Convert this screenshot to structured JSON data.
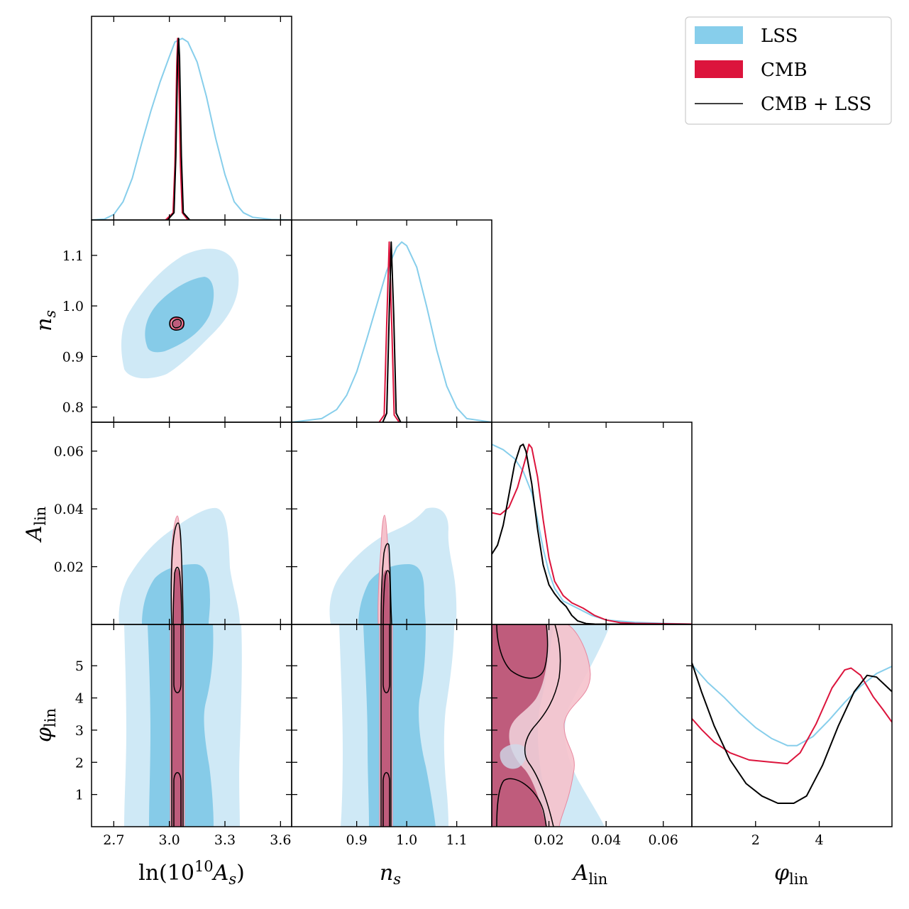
{
  "chart_data": {
    "type": "corner",
    "parameters": [
      {
        "key": "lnAs",
        "label_main": "ln(10",
        "label_sup": "10",
        "label_sym": "A",
        "label_sub": "s",
        "label_close": ")",
        "range": [
          2.58,
          3.66
        ],
        "ticks": [
          2.7,
          3.0,
          3.3,
          3.6
        ],
        "tick_labels": [
          "2.7",
          "3.0",
          "3.3",
          "3.6"
        ]
      },
      {
        "key": "ns",
        "label_sym": "n",
        "label_sub": "s",
        "range": [
          0.77,
          1.17
        ],
        "ticks": [
          0.8,
          0.9,
          1.0,
          1.1
        ],
        "tick_labels": [
          "0.8",
          "0.9",
          "1.0",
          "1.1"
        ],
        "x_tick_labels": [
          "0.9",
          "1.0",
          "1.1"
        ],
        "x_ticks": [
          0.9,
          1.0,
          1.1
        ]
      },
      {
        "key": "Alin",
        "label_sym": "A",
        "label_sub": "lin",
        "range": [
          0.0,
          0.07
        ],
        "ticks": [
          0.02,
          0.04,
          0.06
        ],
        "tick_labels": [
          "0.02",
          "0.04",
          "0.06"
        ]
      },
      {
        "key": "philin",
        "label_sym": "φ",
        "label_sub": "lin",
        "range": [
          0.0,
          6.283
        ],
        "ticks": [
          1,
          2,
          3,
          4,
          5
        ],
        "tick_labels": [
          "1",
          "2",
          "3",
          "4",
          "5"
        ],
        "x_ticks": [
          2,
          4
        ],
        "x_tick_labels": [
          "2",
          "4"
        ]
      }
    ],
    "series": [
      {
        "name": "LSS",
        "color": "#87ceeb",
        "fill_outer": "#cfe9f6",
        "fill_inner": "#86cbe8"
      },
      {
        "name": "CMB",
        "color": "#dc143c",
        "fill_outer": "#f5c2cc",
        "fill_inner": "#bf5c7c"
      },
      {
        "name": "CMB + LSS",
        "color": "#000000"
      }
    ],
    "marginals": {
      "lnAs": {
        "LSS": [
          [
            2.58,
            0
          ],
          [
            2.65,
            0.005
          ],
          [
            2.7,
            0.03
          ],
          [
            2.75,
            0.1
          ],
          [
            2.8,
            0.23
          ],
          [
            2.85,
            0.42
          ],
          [
            2.9,
            0.6
          ],
          [
            2.95,
            0.76
          ],
          [
            3.0,
            0.9
          ],
          [
            3.03,
            0.98
          ],
          [
            3.07,
            1.0
          ],
          [
            3.1,
            0.98
          ],
          [
            3.15,
            0.87
          ],
          [
            3.2,
            0.68
          ],
          [
            3.25,
            0.45
          ],
          [
            3.3,
            0.25
          ],
          [
            3.35,
            0.1
          ],
          [
            3.4,
            0.04
          ],
          [
            3.45,
            0.015
          ],
          [
            3.55,
            0.003
          ],
          [
            3.66,
            0
          ]
        ],
        "CMB": [
          [
            2.98,
            0
          ],
          [
            3.02,
            0.04
          ],
          [
            3.03,
            0.3
          ],
          [
            3.04,
            0.85
          ],
          [
            3.045,
            1.0
          ],
          [
            3.05,
            0.85
          ],
          [
            3.06,
            0.3
          ],
          [
            3.07,
            0.04
          ],
          [
            3.1,
            0
          ]
        ],
        "CMB + LSS": [
          [
            2.99,
            0
          ],
          [
            3.025,
            0.04
          ],
          [
            3.035,
            0.35
          ],
          [
            3.045,
            0.9
          ],
          [
            3.05,
            1.0
          ],
          [
            3.055,
            0.9
          ],
          [
            3.065,
            0.35
          ],
          [
            3.075,
            0.04
          ],
          [
            3.11,
            0
          ]
        ]
      },
      "ns": {
        "LSS": [
          [
            0.77,
            0
          ],
          [
            0.83,
            0.02
          ],
          [
            0.86,
            0.07
          ],
          [
            0.88,
            0.15
          ],
          [
            0.9,
            0.28
          ],
          [
            0.92,
            0.46
          ],
          [
            0.94,
            0.65
          ],
          [
            0.96,
            0.84
          ],
          [
            0.98,
            0.97
          ],
          [
            0.99,
            1.0
          ],
          [
            1.0,
            0.98
          ],
          [
            1.02,
            0.86
          ],
          [
            1.04,
            0.64
          ],
          [
            1.06,
            0.4
          ],
          [
            1.08,
            0.2
          ],
          [
            1.1,
            0.08
          ],
          [
            1.12,
            0.02
          ],
          [
            1.17,
            0
          ]
        ],
        "CMB": [
          [
            0.945,
            0
          ],
          [
            0.955,
            0.04
          ],
          [
            0.96,
            0.55
          ],
          [
            0.965,
            1.0
          ],
          [
            0.97,
            0.55
          ],
          [
            0.975,
            0.04
          ],
          [
            0.985,
            0
          ]
        ],
        "CMB + LSS": [
          [
            0.952,
            0
          ],
          [
            0.96,
            0.05
          ],
          [
            0.965,
            0.6
          ],
          [
            0.969,
            1.0
          ],
          [
            0.974,
            0.6
          ],
          [
            0.979,
            0.05
          ],
          [
            0.988,
            0
          ]
        ]
      },
      "Alin": {
        "LSS": [
          [
            0.0,
            1.0
          ],
          [
            0.004,
            0.97
          ],
          [
            0.008,
            0.92
          ],
          [
            0.011,
            0.85
          ],
          [
            0.014,
            0.73
          ],
          [
            0.016,
            0.58
          ],
          [
            0.018,
            0.42
          ],
          [
            0.02,
            0.29
          ],
          [
            0.022,
            0.2
          ],
          [
            0.025,
            0.13
          ],
          [
            0.03,
            0.09
          ],
          [
            0.035,
            0.05
          ],
          [
            0.04,
            0.025
          ],
          [
            0.05,
            0.012
          ],
          [
            0.06,
            0.006
          ],
          [
            0.07,
            0.002
          ]
        ],
        "CMB": [
          [
            0.0,
            0.62
          ],
          [
            0.003,
            0.61
          ],
          [
            0.006,
            0.65
          ],
          [
            0.009,
            0.76
          ],
          [
            0.012,
            0.93
          ],
          [
            0.013,
            1.0
          ],
          [
            0.014,
            0.98
          ],
          [
            0.016,
            0.82
          ],
          [
            0.018,
            0.58
          ],
          [
            0.02,
            0.37
          ],
          [
            0.022,
            0.24
          ],
          [
            0.025,
            0.16
          ],
          [
            0.028,
            0.12
          ],
          [
            0.032,
            0.09
          ],
          [
            0.036,
            0.05
          ],
          [
            0.04,
            0.025
          ],
          [
            0.045,
            0.01
          ],
          [
            0.05,
            0.006
          ],
          [
            0.07,
            0.002
          ]
        ],
        "CMB + LSS": [
          [
            0.0,
            0.39
          ],
          [
            0.002,
            0.44
          ],
          [
            0.004,
            0.55
          ],
          [
            0.006,
            0.72
          ],
          [
            0.008,
            0.89
          ],
          [
            0.01,
            0.99
          ],
          [
            0.011,
            1.0
          ],
          [
            0.012,
            0.96
          ],
          [
            0.014,
            0.78
          ],
          [
            0.016,
            0.53
          ],
          [
            0.018,
            0.33
          ],
          [
            0.02,
            0.22
          ],
          [
            0.022,
            0.17
          ],
          [
            0.024,
            0.13
          ],
          [
            0.026,
            0.1
          ],
          [
            0.028,
            0.05
          ],
          [
            0.03,
            0.02
          ],
          [
            0.033,
            0.005
          ],
          [
            0.036,
            0.002
          ],
          [
            0.05,
            0.001
          ],
          [
            0.07,
            0.0
          ]
        ]
      },
      "philin": {
        "LSS": [
          [
            0.0,
            0.9
          ],
          [
            0.5,
            0.8
          ],
          [
            1.0,
            0.72
          ],
          [
            1.5,
            0.63
          ],
          [
            2.0,
            0.55
          ],
          [
            2.5,
            0.49
          ],
          [
            3.0,
            0.45
          ],
          [
            3.3,
            0.45
          ],
          [
            3.8,
            0.5
          ],
          [
            4.3,
            0.59
          ],
          [
            4.8,
            0.69
          ],
          [
            5.3,
            0.78
          ],
          [
            5.8,
            0.85
          ],
          [
            6.283,
            0.89
          ]
        ],
        "CMB": [
          [
            0.0,
            0.6
          ],
          [
            0.3,
            0.54
          ],
          [
            0.7,
            0.47
          ],
          [
            1.2,
            0.41
          ],
          [
            1.8,
            0.37
          ],
          [
            2.4,
            0.36
          ],
          [
            3.0,
            0.35
          ],
          [
            3.4,
            0.41
          ],
          [
            3.9,
            0.57
          ],
          [
            4.4,
            0.77
          ],
          [
            4.8,
            0.87
          ],
          [
            5.0,
            0.88
          ],
          [
            5.3,
            0.84
          ],
          [
            5.7,
            0.72
          ],
          [
            6.0,
            0.65
          ],
          [
            6.283,
            0.58
          ]
        ],
        "CMB + LSS": [
          [
            0.0,
            0.91
          ],
          [
            0.3,
            0.75
          ],
          [
            0.7,
            0.56
          ],
          [
            1.2,
            0.37
          ],
          [
            1.7,
            0.24
          ],
          [
            2.2,
            0.17
          ],
          [
            2.7,
            0.13
          ],
          [
            3.2,
            0.13
          ],
          [
            3.6,
            0.17
          ],
          [
            4.1,
            0.34
          ],
          [
            4.6,
            0.56
          ],
          [
            5.1,
            0.75
          ],
          [
            5.5,
            0.84
          ],
          [
            5.8,
            0.83
          ],
          [
            6.1,
            0.78
          ],
          [
            6.283,
            0.75
          ]
        ]
      }
    },
    "ylim_marginal": [
      0,
      1.02
    ],
    "legend": {
      "placement": "top-right",
      "entries": [
        "LSS",
        "CMB",
        "CMB + LSS"
      ]
    }
  }
}
